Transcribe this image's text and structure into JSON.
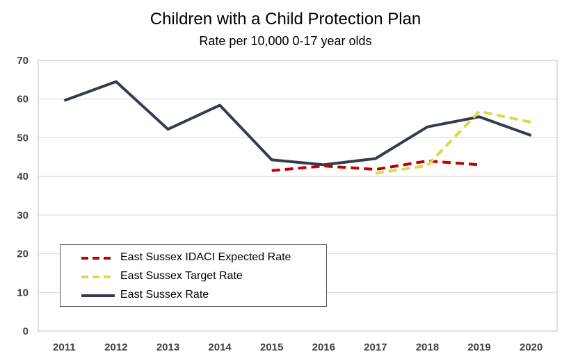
{
  "chart_data": {
    "type": "line",
    "title": "Children with a Child Protection Plan",
    "subtitle": "Rate per 10,000 0-17 year olds",
    "x": [
      "2011",
      "2012",
      "2013",
      "2014",
      "2015",
      "2016",
      "2017",
      "2018",
      "2019",
      "2020"
    ],
    "ylim": [
      0,
      70
    ],
    "yticks": [
      0,
      10,
      20,
      30,
      40,
      50,
      60,
      70
    ],
    "grid": true,
    "legend_position": "bottom-left",
    "series": [
      {
        "name": "East Sussex IDACI Expected Rate",
        "color": "#c00000",
        "dash": "dashed",
        "values": [
          null,
          null,
          null,
          null,
          41.5,
          42.7,
          41.8,
          44.0,
          43.0,
          null
        ]
      },
      {
        "name": "East Sussex Target Rate",
        "color": "#d9d94a",
        "dash": "dashed",
        "values": [
          null,
          null,
          null,
          null,
          null,
          null,
          40.8,
          42.8,
          56.8,
          54.0
        ]
      },
      {
        "name": "East Sussex Rate",
        "color": "#323c4f",
        "dash": "solid",
        "values": [
          59.6,
          64.5,
          52.2,
          58.4,
          44.3,
          43.0,
          44.6,
          52.8,
          55.4,
          50.6
        ]
      }
    ]
  }
}
